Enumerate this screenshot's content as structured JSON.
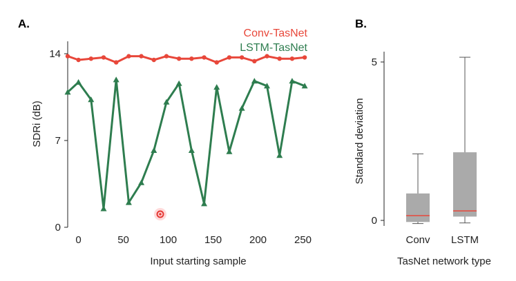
{
  "chart_data": [
    {
      "panel_label": "A.",
      "type": "line",
      "title": "",
      "xlabel": "Input starting sample",
      "ylabel": "SDRi (dB)",
      "xlim": [
        -12,
        255
      ],
      "ylim": [
        0,
        15
      ],
      "xticks": [
        0,
        50,
        100,
        150,
        200,
        250
      ],
      "yticks": [
        0,
        7,
        14
      ],
      "grid": false,
      "legend_placement": "top-right",
      "x": [
        -12,
        0,
        14,
        28,
        42,
        56,
        70,
        84,
        98,
        112,
        126,
        140,
        154,
        168,
        182,
        196,
        210,
        224,
        238,
        252
      ],
      "series": [
        {
          "name": "Conv-TasNet",
          "color": "#e8473a",
          "marker": "circle",
          "values": [
            13.8,
            13.5,
            13.6,
            13.7,
            13.3,
            13.8,
            13.8,
            13.5,
            13.8,
            13.6,
            13.6,
            13.7,
            13.3,
            13.7,
            13.7,
            13.4,
            13.8,
            13.6,
            13.6,
            13.7
          ]
        },
        {
          "name": "LSTM-TasNet",
          "color": "#2e7d4f",
          "marker": "triangle",
          "values": [
            10.9,
            11.7,
            10.3,
            1.5,
            11.9,
            2.0,
            3.6,
            6.2,
            10.1,
            11.6,
            6.2,
            1.9,
            11.3,
            6.1,
            9.6,
            11.8,
            11.4,
            5.8,
            11.8,
            11.4
          ]
        }
      ]
    },
    {
      "panel_label": "B.",
      "type": "box",
      "title": "",
      "xlabel": "TasNet network type",
      "ylabel": "Standard deviation",
      "ylim": [
        0,
        5.5
      ],
      "yticks": [
        0,
        5
      ],
      "grid": false,
      "categories": [
        "Conv",
        "LSTM"
      ],
      "boxes": [
        {
          "name": "Conv",
          "whisker_low": -0.1,
          "q1": -0.05,
          "median": 0.15,
          "q3": 0.85,
          "whisker_high": 2.1
        },
        {
          "name": "LSTM",
          "whisker_low": -0.08,
          "q1": 0.12,
          "median": 0.3,
          "q3": 2.15,
          "whisker_high": 5.15
        }
      ],
      "box_color": "#aaaaaa",
      "median_color": "#e8473a"
    }
  ]
}
